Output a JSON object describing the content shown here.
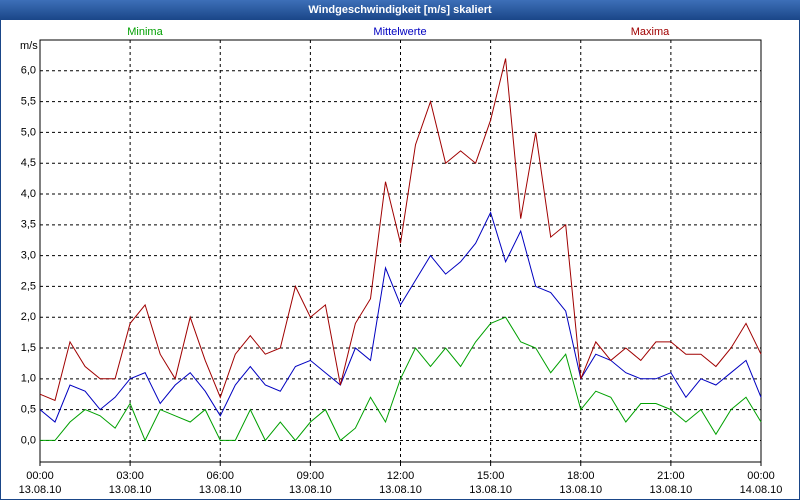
{
  "chart_data": {
    "type": "line",
    "title": "Windgeschwindigkeit [m/s] skaliert",
    "y_label": "m/s",
    "x": [
      0,
      0.5,
      1,
      1.5,
      2,
      2.5,
      3,
      3.5,
      4,
      4.5,
      5,
      5.5,
      6,
      6.5,
      7,
      7.5,
      8,
      8.5,
      9,
      9.5,
      10,
      10.5,
      11,
      11.5,
      12,
      12.5,
      13,
      13.5,
      14,
      14.5,
      15,
      15.5,
      16,
      16.5,
      17,
      17.5,
      18,
      18.5,
      19,
      19.5,
      20,
      20.5,
      21,
      21.5,
      22,
      22.5,
      23,
      23.5,
      24
    ],
    "series": [
      {
        "name": "Minima",
        "color": "#00a000",
        "values": [
          0,
          0,
          0.3,
          0.5,
          0.4,
          0.2,
          0.6,
          0,
          0.5,
          0.4,
          0.3,
          0.5,
          0,
          0,
          0.5,
          0,
          0.3,
          0,
          0.3,
          0.5,
          0,
          0.2,
          0.7,
          0.3,
          1.0,
          1.5,
          1.2,
          1.5,
          1.2,
          1.6,
          1.9,
          2.0,
          1.6,
          1.5,
          1.1,
          1.4,
          0.5,
          0.8,
          0.7,
          0.3,
          0.6,
          0.6,
          0.5,
          0.3,
          0.5,
          0.1,
          0.5,
          0.7,
          0.3
        ]
      },
      {
        "name": "Mittelwerte",
        "color": "#0000c0",
        "values": [
          0.5,
          0.3,
          0.9,
          0.8,
          0.5,
          0.7,
          1.0,
          1.1,
          0.6,
          0.9,
          1.1,
          0.8,
          0.4,
          0.9,
          1.2,
          0.9,
          0.8,
          1.2,
          1.3,
          1.1,
          0.9,
          1.5,
          1.3,
          2.8,
          2.2,
          2.6,
          3.0,
          2.7,
          2.9,
          3.2,
          3.7,
          2.9,
          3.4,
          2.5,
          2.4,
          2.1,
          1.0,
          1.4,
          1.3,
          1.1,
          1.0,
          1.0,
          1.1,
          0.7,
          1.0,
          0.9,
          1.1,
          1.3,
          0.7
        ]
      },
      {
        "name": "Maxima",
        "color": "#a00000",
        "values": [
          0.75,
          0.65,
          1.6,
          1.2,
          1.0,
          1.0,
          1.9,
          2.2,
          1.4,
          1.0,
          2.0,
          1.3,
          0.7,
          1.4,
          1.7,
          1.4,
          1.5,
          2.5,
          2.0,
          2.2,
          0.9,
          1.9,
          2.3,
          4.2,
          3.2,
          4.8,
          5.5,
          4.5,
          4.7,
          4.5,
          5.2,
          6.2,
          3.6,
          5.0,
          3.3,
          3.5,
          1.0,
          1.6,
          1.3,
          1.5,
          1.3,
          1.6,
          1.6,
          1.4,
          1.4,
          1.2,
          1.5,
          1.9,
          1.4
        ]
      }
    ],
    "xlim": [
      0,
      24
    ],
    "xticks": [
      {
        "value": 0,
        "label": "00:00"
      },
      {
        "value": 3,
        "label": "03:00"
      },
      {
        "value": 6,
        "label": "06:00"
      },
      {
        "value": 9,
        "label": "09:00"
      },
      {
        "value": 12,
        "label": "12:00"
      },
      {
        "value": 15,
        "label": "15:00"
      },
      {
        "value": 18,
        "label": "18:00"
      },
      {
        "value": 21,
        "label": "21:00"
      },
      {
        "value": 24,
        "label": "00:00"
      }
    ],
    "xtick_dates": [
      "13.08.10",
      "13.08.10",
      "13.08.10",
      "13.08.10",
      "13.08.10",
      "13.08.10",
      "13.08.10",
      "13.08.10",
      "14.08.10"
    ],
    "ylim": [
      -0.35,
      6.5
    ],
    "yticks": [
      {
        "value": 0,
        "label": "0,0"
      },
      {
        "value": 0.5,
        "label": "0,5"
      },
      {
        "value": 1,
        "label": "1,0"
      },
      {
        "value": 1.5,
        "label": "1,5"
      },
      {
        "value": 2,
        "label": "2,0"
      },
      {
        "value": 2.5,
        "label": "2,5"
      },
      {
        "value": 3,
        "label": "3,0"
      },
      {
        "value": 3.5,
        "label": "3,5"
      },
      {
        "value": 4,
        "label": "4,0"
      },
      {
        "value": 4.5,
        "label": "4,5"
      },
      {
        "value": 5,
        "label": "5,0"
      },
      {
        "value": 5.5,
        "label": "5,5"
      },
      {
        "value": 6,
        "label": "6,0"
      }
    ],
    "grid": true
  }
}
